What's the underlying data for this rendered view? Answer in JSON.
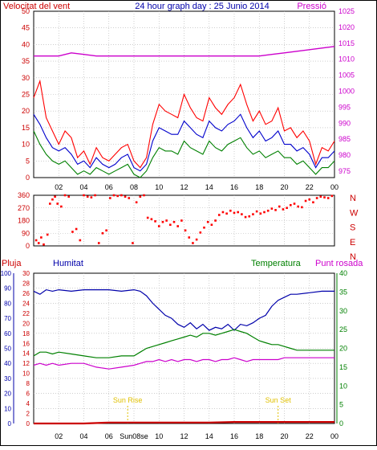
{
  "header": {
    "left_title": "Velocitat del vent",
    "center_title": "24 hour graph day : 25 Junio 2014",
    "right_title": "Pressió"
  },
  "colors": {
    "frame": "#000000",
    "wind_red": "#ff0000",
    "wind_green": "#008000",
    "wind_blue": "#0000cc",
    "pressure": "#cc00cc",
    "direction": "#ff0000",
    "humidity": "#0000aa",
    "temperature": "#008000",
    "dewpoint": "#cc00cc",
    "rain": "#cc0000",
    "sun_marker": "#e0c000",
    "grid": "#b0b0b0",
    "left_axis_red": "#cc0000",
    "left_axis_blue": "#0000aa",
    "right_axis_green": "#008000",
    "right_axis_magenta": "#cc00cc"
  },
  "chart_data": [
    {
      "id": "wind_pressure",
      "type": "line",
      "x_ticks": [
        "02",
        "04",
        "06",
        "08",
        "10",
        "12",
        "14",
        "16",
        "18",
        "20",
        "22",
        "00"
      ],
      "x_range_hours": [
        0,
        24
      ],
      "left_axis": {
        "label": "Velocitat del vent",
        "ticks": [
          0,
          5,
          10,
          15,
          20,
          25,
          30,
          35,
          40,
          45,
          50
        ],
        "ylim": [
          0,
          50
        ]
      },
      "right_axis": {
        "label": "Pressió",
        "ticks": [
          975,
          980,
          985,
          990,
          995,
          1000,
          1005,
          1010,
          1015,
          1020,
          1025
        ],
        "ylim": [
          973,
          1025
        ]
      },
      "grid": true,
      "series": [
        {
          "key": "gust",
          "color": "#ff0000",
          "x": [
            0,
            0.5,
            1,
            1.5,
            2,
            2.5,
            3,
            3.5,
            4,
            4.5,
            5,
            5.5,
            6,
            6.5,
            7,
            7.5,
            8,
            8.5,
            9,
            9.5,
            10,
            10.5,
            11,
            11.5,
            12,
            12.5,
            13,
            13.5,
            14,
            14.5,
            15,
            15.5,
            16,
            16.5,
            17,
            17.5,
            18,
            18.5,
            19,
            19.5,
            20,
            20.5,
            21,
            21.5,
            22,
            22.5,
            23,
            23.5,
            24
          ],
          "values": [
            24,
            29,
            18,
            14,
            10,
            14,
            12,
            6,
            8,
            4,
            9,
            6,
            5,
            7,
            9,
            10,
            5,
            3,
            6,
            16,
            22,
            20,
            19,
            18,
            25,
            21,
            18,
            17,
            24,
            21,
            19,
            22,
            24,
            28,
            22,
            17,
            20,
            16,
            17,
            21,
            14,
            15,
            12,
            14,
            11,
            4,
            9,
            8,
            11
          ]
        },
        {
          "key": "average",
          "color": "#0000cc",
          "x": [
            0,
            0.5,
            1,
            1.5,
            2,
            2.5,
            3,
            3.5,
            4,
            4.5,
            5,
            5.5,
            6,
            6.5,
            7,
            7.5,
            8,
            8.5,
            9,
            9.5,
            10,
            10.5,
            11,
            11.5,
            12,
            12.5,
            13,
            13.5,
            14,
            14.5,
            15,
            15.5,
            16,
            16.5,
            17,
            17.5,
            18,
            18.5,
            19,
            19.5,
            20,
            20.5,
            21,
            21.5,
            22,
            22.5,
            23,
            23.5,
            24
          ],
          "values": [
            19,
            16,
            12,
            9,
            8,
            9,
            7,
            4,
            5,
            3,
            6,
            4,
            3,
            4,
            6,
            7,
            3,
            2,
            4,
            11,
            15,
            14,
            13,
            13,
            17,
            15,
            13,
            12,
            17,
            15,
            14,
            16,
            17,
            19,
            15,
            12,
            14,
            11,
            12,
            14,
            10,
            10,
            8,
            9,
            7,
            3,
            6,
            6,
            8
          ]
        },
        {
          "key": "min",
          "color": "#008000",
          "x": [
            0,
            0.5,
            1,
            1.5,
            2,
            2.5,
            3,
            3.5,
            4,
            4.5,
            5,
            5.5,
            6,
            6.5,
            7,
            7.5,
            8,
            8.5,
            9,
            9.5,
            10,
            10.5,
            11,
            11.5,
            12,
            12.5,
            13,
            13.5,
            14,
            14.5,
            15,
            15.5,
            16,
            16.5,
            17,
            17.5,
            18,
            18.5,
            19,
            19.5,
            20,
            20.5,
            21,
            21.5,
            22,
            22.5,
            23,
            23.5,
            24
          ],
          "values": [
            14,
            10,
            7,
            5,
            4,
            5,
            3,
            1,
            2,
            1,
            3,
            2,
            1,
            2,
            3,
            4,
            1,
            0,
            2,
            6,
            9,
            8,
            8,
            7,
            11,
            9,
            8,
            7,
            11,
            9,
            8,
            10,
            11,
            12,
            9,
            7,
            8,
            6,
            7,
            8,
            6,
            6,
            4,
            5,
            3,
            1,
            3,
            3,
            5
          ]
        },
        {
          "key": "pressure",
          "color": "#cc00cc",
          "axis": "right",
          "x": [
            0,
            1,
            2,
            3,
            4,
            5,
            6,
            7,
            8,
            9,
            10,
            11,
            12,
            13,
            14,
            15,
            16,
            17,
            18,
            19,
            20,
            21,
            22,
            23,
            24
          ],
          "values": [
            1011,
            1011,
            1011,
            1012,
            1011.5,
            1011,
            1011,
            1011,
            1011,
            1011,
            1011,
            1011,
            1011,
            1011,
            1011,
            1011,
            1011,
            1011,
            1011,
            1011.5,
            1012,
            1012.5,
            1013,
            1013.5,
            1014
          ]
        }
      ]
    },
    {
      "id": "wind_direction",
      "type": "scatter",
      "x_ticks": [
        "02",
        "04",
        "06",
        "08",
        "10",
        "12",
        "14",
        "16",
        "18",
        "20",
        "22",
        "00"
      ],
      "y_axis": {
        "ticks": [
          0,
          90,
          180,
          270,
          360
        ],
        "ylim": [
          0,
          360
        ]
      },
      "right_labels": [
        "N",
        "W",
        "S",
        "E",
        "N"
      ],
      "grid": true,
      "points_x": [
        0.2,
        0.4,
        0.6,
        0.8,
        1.1,
        1.3,
        1.5,
        1.7,
        1.9,
        2.2,
        2.5,
        2.8,
        3.1,
        3.4,
        3.7,
        4.0,
        4.3,
        4.6,
        4.9,
        5.2,
        5.5,
        5.8,
        6.1,
        6.4,
        6.7,
        7.0,
        7.3,
        7.6,
        7.9,
        8.2,
        8.5,
        8.8,
        9.1,
        9.4,
        9.7,
        10.0,
        10.3,
        10.6,
        10.9,
        11.2,
        11.5,
        11.8,
        12.1,
        12.4,
        12.7,
        13.0,
        13.3,
        13.6,
        13.9,
        14.2,
        14.5,
        14.8,
        15.1,
        15.4,
        15.7,
        16.0,
        16.3,
        16.6,
        16.9,
        17.2,
        17.5,
        17.8,
        18.1,
        18.4,
        18.7,
        19.0,
        19.3,
        19.6,
        19.9,
        20.2,
        20.5,
        20.8,
        21.1,
        21.4,
        21.7,
        22.0,
        22.3,
        22.6,
        22.9,
        23.2,
        23.5,
        23.8
      ],
      "points_y": [
        40,
        20,
        60,
        10,
        80,
        300,
        330,
        350,
        300,
        280,
        360,
        350,
        100,
        120,
        40,
        360,
        350,
        345,
        360,
        20,
        90,
        110,
        340,
        360,
        355,
        360,
        350,
        340,
        20,
        310,
        350,
        360,
        200,
        190,
        175,
        140,
        170,
        180,
        150,
        170,
        140,
        180,
        110,
        60,
        20,
        45,
        95,
        130,
        170,
        150,
        180,
        220,
        240,
        230,
        250,
        235,
        240,
        225,
        205,
        210,
        225,
        245,
        230,
        240,
        250,
        265,
        255,
        280,
        260,
        270,
        290,
        300,
        280,
        275,
        320,
        330,
        310,
        340,
        350,
        345,
        340,
        355
      ]
    },
    {
      "id": "humidity_temperature",
      "type": "line",
      "x_ticks": [
        "02",
        "04",
        "06",
        "Sun08se",
        "10",
        "12",
        "14",
        "16",
        "18",
        "20",
        "22",
        "00"
      ],
      "left_axis_rain": {
        "label": "Pluja",
        "ticks": [
          0,
          2,
          4,
          6,
          8,
          10,
          12,
          14,
          16,
          18,
          20,
          22,
          24,
          26,
          28,
          30
        ]
      },
      "left_axis_humidity": {
        "label": "Humitat",
        "ticks": [
          0,
          10,
          20,
          30,
          40,
          50,
          60,
          70,
          80,
          90,
          100
        ],
        "ylim": [
          0,
          100
        ]
      },
      "right_axis": {
        "label": "Temperatura",
        "ticks": [
          0,
          5,
          10,
          15,
          20,
          25,
          30,
          35,
          40
        ],
        "ylim": [
          0,
          40
        ]
      },
      "dewpoint_label": "Punt rosada",
      "grid": true,
      "annotations": [
        {
          "text": "Sun Rise",
          "x_hour": 7.5
        },
        {
          "text": "Sun Set",
          "x_hour": 19.5
        }
      ],
      "series": [
        {
          "key": "humidity",
          "name": "Humitat",
          "color": "#0000aa",
          "axis": "humidity",
          "x": [
            0,
            0.5,
            1,
            1.5,
            2,
            3,
            4,
            5,
            6,
            7,
            8,
            8.5,
            9,
            9.5,
            10,
            10.5,
            11,
            11.5,
            12,
            12.5,
            13,
            13.5,
            14,
            14.5,
            15,
            15.5,
            16,
            16.5,
            17,
            17.5,
            18,
            18.5,
            19,
            19.5,
            20,
            20.5,
            21,
            22,
            23,
            24
          ],
          "values": [
            88,
            86,
            89,
            88,
            89,
            88,
            89,
            89,
            89,
            88,
            89,
            88,
            85,
            80,
            76,
            72,
            70,
            66,
            64,
            67,
            63,
            66,
            62,
            64,
            63,
            66,
            62,
            66,
            65,
            67,
            70,
            72,
            78,
            82,
            84,
            86,
            86,
            87,
            88,
            88
          ]
        },
        {
          "key": "temperature",
          "name": "Temperatura",
          "color": "#008000",
          "axis": "right",
          "x": [
            0,
            0.5,
            1,
            1.5,
            2,
            3,
            4,
            5,
            6,
            7,
            8,
            8.5,
            9,
            9.5,
            10,
            10.5,
            11,
            11.5,
            12,
            12.5,
            13,
            13.5,
            14,
            14.5,
            15,
            15.5,
            16,
            16.5,
            17,
            17.5,
            18,
            18.5,
            19,
            19.5,
            20,
            20.5,
            21,
            22,
            23,
            24
          ],
          "values": [
            18,
            19,
            19,
            18.5,
            19,
            18.5,
            18,
            17.5,
            17.5,
            18,
            18,
            19,
            20,
            20.5,
            21,
            21.5,
            22,
            22.5,
            23,
            23.5,
            23,
            24,
            24,
            23.5,
            24,
            24.5,
            25,
            24.5,
            24,
            23,
            22,
            21.5,
            21,
            21,
            20.5,
            20,
            19.5,
            19.5,
            19.5,
            19.5
          ]
        },
        {
          "key": "dewpoint",
          "name": "Punt rosada",
          "color": "#cc00cc",
          "axis": "right",
          "x": [
            0,
            0.5,
            1,
            1.5,
            2,
            3,
            4,
            5,
            6,
            7,
            8,
            8.5,
            9,
            9.5,
            10,
            10.5,
            11,
            11.5,
            12,
            12.5,
            13,
            13.5,
            14,
            14.5,
            15,
            15.5,
            16,
            16.5,
            17,
            17.5,
            18,
            18.5,
            19,
            19.5,
            20,
            20.5,
            21,
            22,
            23,
            24
          ],
          "values": [
            15.5,
            16,
            15.5,
            16,
            15.5,
            16,
            16,
            15,
            14.5,
            15,
            15.5,
            16,
            16.5,
            16.5,
            17,
            16.5,
            17,
            16.5,
            17,
            17,
            16.5,
            17,
            17,
            16.5,
            17,
            17,
            17.5,
            17,
            16.5,
            17,
            17,
            17,
            17,
            17,
            17.5,
            17.5,
            17.5,
            17.5,
            17.5,
            17.5
          ]
        },
        {
          "key": "rain",
          "name": "Pluja",
          "color": "#cc0000",
          "axis": "rain",
          "x": [
            0,
            2,
            4,
            6,
            8,
            10,
            12,
            14,
            16,
            18,
            20,
            22,
            24
          ],
          "values": [
            0,
            0,
            0,
            0.2,
            0.2,
            0.2,
            0.2,
            0.2,
            0.3,
            0.3,
            0.3,
            0.3,
            0.3
          ]
        }
      ]
    }
  ]
}
